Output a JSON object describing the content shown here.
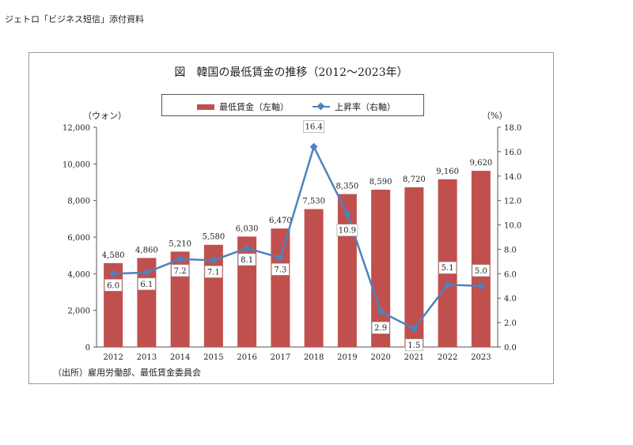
{
  "header": {
    "text": "ジェトロ「ビジネス短信」添付資料"
  },
  "chart_data": {
    "type": "bar+line",
    "title": "図　韓国の最低賃金の推移（2012～2023年）",
    "categories": [
      "2012",
      "2013",
      "2014",
      "2015",
      "2016",
      "2017",
      "2018",
      "2019",
      "2020",
      "2021",
      "2022",
      "2023"
    ],
    "series": [
      {
        "name": "最低賃金（左軸）",
        "type": "bar",
        "axis": "left",
        "color": "#c0504d",
        "values": [
          4580,
          4860,
          5210,
          5580,
          6030,
          6470,
          7530,
          8350,
          8590,
          8720,
          9160,
          9620
        ],
        "labels": [
          "4,580",
          "4,860",
          "5,210",
          "5,580",
          "6,030",
          "6,470",
          "7,530",
          "8,350",
          "8,590",
          "8,720",
          "9,160",
          "9,620"
        ]
      },
      {
        "name": "上昇率（右軸）",
        "type": "line",
        "axis": "right",
        "color": "#4f81bd",
        "values": [
          6.0,
          6.1,
          7.2,
          7.1,
          8.1,
          7.3,
          16.4,
          10.9,
          2.9,
          1.5,
          5.1,
          5.0
        ],
        "labels": [
          "6.0",
          "6.1",
          "7.2",
          "7.1",
          "8.1",
          "7.3",
          "16.4",
          "10.9",
          "2.9",
          "1.5",
          "5.1",
          "5.0"
        ]
      }
    ],
    "y_left": {
      "unit": "（ウォン）",
      "range": [
        0,
        12000
      ],
      "ticks": [
        "0",
        "2,000",
        "4,000",
        "6,000",
        "8,000",
        "10,000",
        "12,000"
      ]
    },
    "y_right": {
      "unit": "（%）",
      "range": [
        0,
        18
      ],
      "ticks": [
        "0.0",
        "2.0",
        "4.0",
        "6.0",
        "8.0",
        "10.0",
        "12.0",
        "14.0",
        "16.0",
        "18.0"
      ]
    },
    "legend_position": "top",
    "grid": false
  },
  "source": "（出所）雇用労働部、最低賃金委員会"
}
